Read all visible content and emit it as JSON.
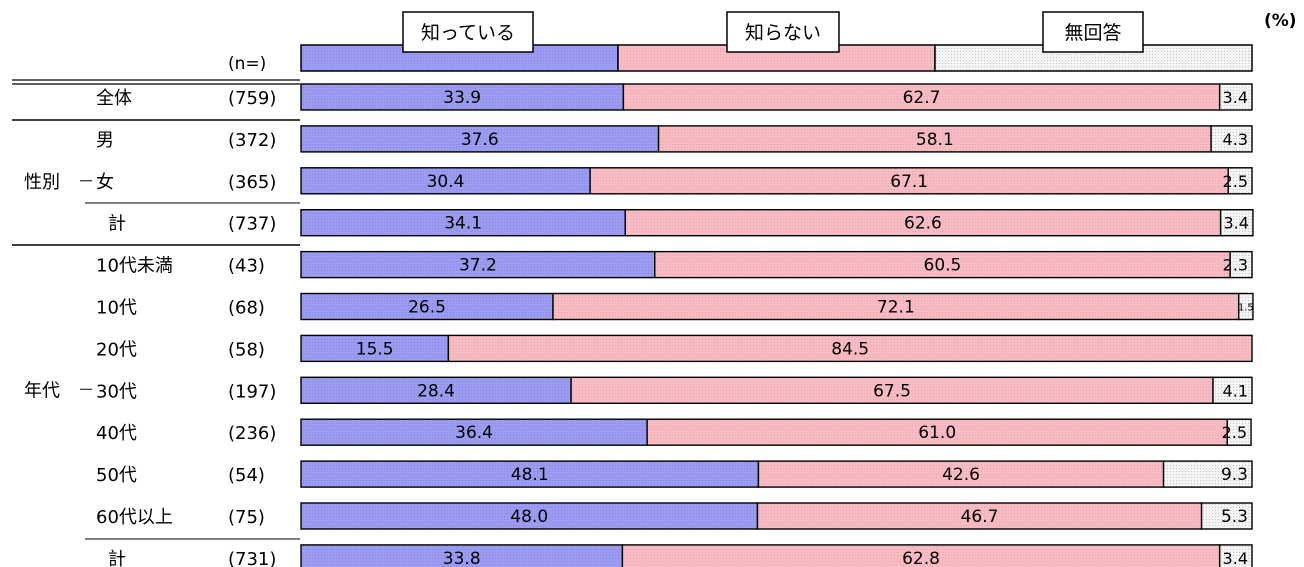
{
  "unit_label": "(%)",
  "n_header": "(n=)",
  "colors": {
    "known": "#9b9cf0",
    "unknown": "#f7bcc3",
    "no_answer": "#ededed",
    "border": "#000000"
  },
  "chart_data": {
    "type": "bar",
    "orientation": "horizontal",
    "stacked": true,
    "percent_scale": [
      0,
      100
    ],
    "series": [
      {
        "name": "知っている",
        "values": [
          33.9,
          37.6,
          30.4,
          34.1,
          37.2,
          26.5,
          15.5,
          28.4,
          36.4,
          48.1,
          48.0,
          33.8
        ]
      },
      {
        "name": "知らない",
        "values": [
          62.7,
          58.1,
          67.1,
          62.6,
          60.5,
          72.1,
          84.5,
          67.5,
          61.0,
          42.6,
          46.7,
          62.8
        ]
      },
      {
        "name": "無回答",
        "values": [
          3.4,
          4.3,
          2.5,
          3.4,
          2.3,
          1.5,
          0,
          4.1,
          2.5,
          9.3,
          5.3,
          3.4
        ]
      }
    ],
    "categories": [
      "全体",
      "男",
      "女",
      "計",
      "10代未満",
      "10代",
      "20代",
      "30代",
      "40代",
      "50代",
      "60代以上",
      "計"
    ],
    "n": [
      "(759)",
      "(372)",
      "(365)",
      "(737)",
      "(43)",
      "(68)",
      "(58)",
      "(197)",
      "(236)",
      "(54)",
      "(75)",
      "(731)"
    ],
    "groups": [
      {
        "label": "性別",
        "rows": [
          1,
          2,
          3
        ]
      },
      {
        "label": "年代",
        "rows": [
          4,
          5,
          6,
          7,
          8,
          9,
          10,
          11
        ]
      }
    ]
  }
}
